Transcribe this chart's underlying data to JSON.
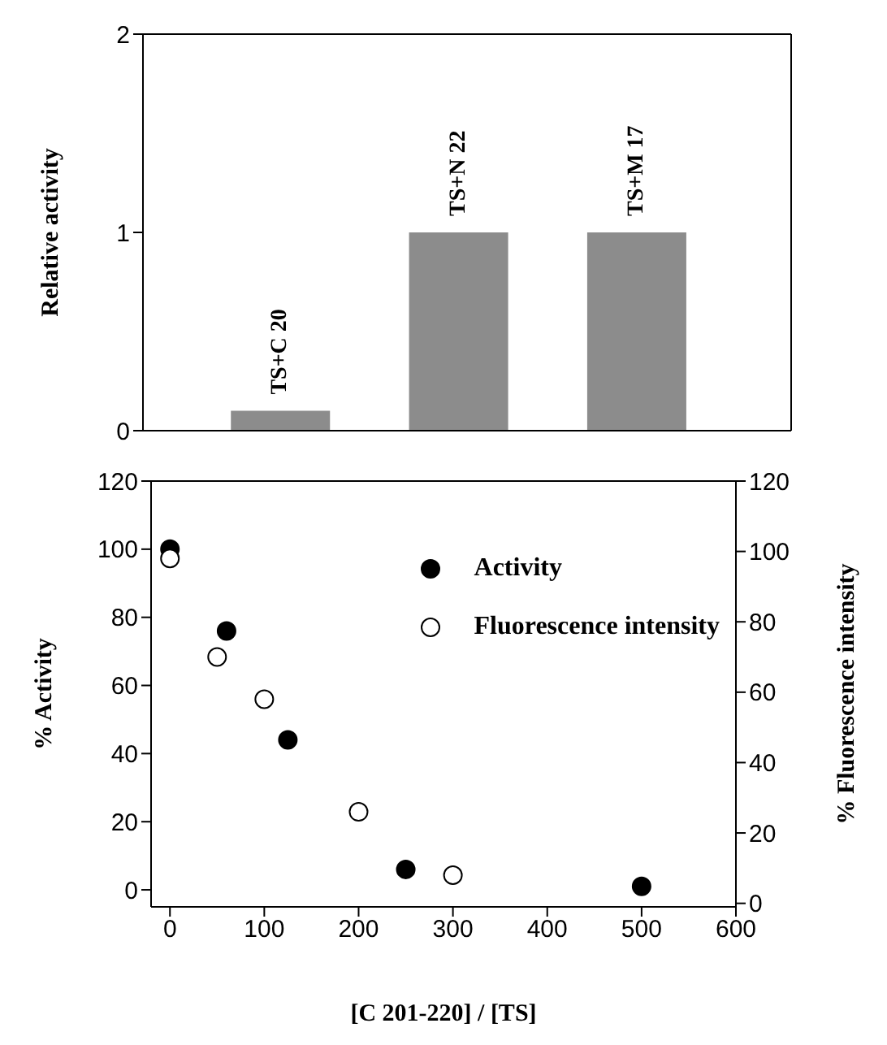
{
  "chart_data": [
    {
      "type": "bar",
      "ylabel": "Relative activity",
      "categories": [
        "TS+C 20",
        "TS+N 22",
        "TS+M 17"
      ],
      "values": [
        0.1,
        1.0,
        1.0
      ],
      "color": "#8c8c8c",
      "ylim": [
        0,
        2
      ],
      "yticks": [
        0,
        1,
        2
      ],
      "tick_labels": "y",
      "grid": false,
      "legend": false
    },
    {
      "type": "scatter",
      "xlabel": "[C 201-220] / [TS]",
      "ylabel": "% Activity",
      "y2label": "% Fluorescence intensity",
      "xlim": [
        -20,
        600
      ],
      "xticks": [
        0,
        100,
        200,
        300,
        400,
        500,
        600
      ],
      "ylim": [
        -5,
        120
      ],
      "yticks": [
        0,
        20,
        40,
        60,
        80,
        100,
        120
      ],
      "y2lim": [
        -1,
        120
      ],
      "y2ticks": [
        0,
        20,
        40,
        60,
        80,
        100,
        120
      ],
      "grid": false,
      "legend": "top right",
      "marker": "circle",
      "series": [
        {
          "name": "Activity",
          "color": "#000000",
          "x": [
            0,
            60,
            125,
            250,
            500
          ],
          "values": [
            100,
            76,
            44,
            6,
            1
          ]
        },
        {
          "name": "Fluorescence intensity",
          "color": "#ffffff",
          "axis": "y2",
          "x": [
            0,
            50,
            100,
            200,
            300
          ],
          "values": [
            98,
            70,
            58,
            26,
            8
          ]
        }
      ]
    }
  ]
}
